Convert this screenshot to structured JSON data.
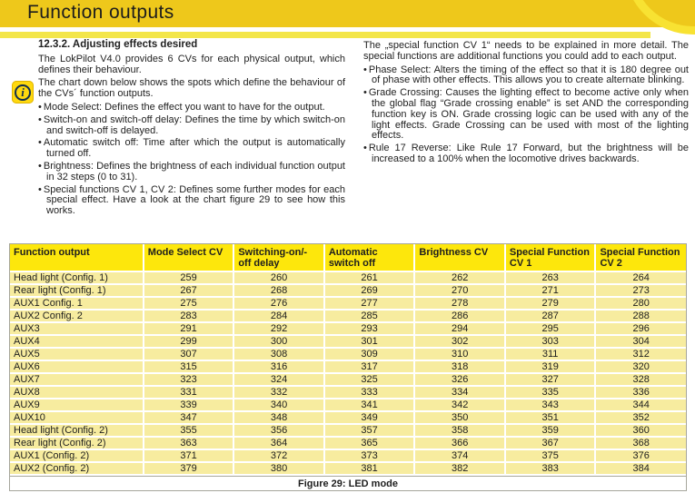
{
  "page": {
    "title": "Function outputs"
  },
  "content": {
    "section_heading": "12.3.2. Adjusting effects desired",
    "left": {
      "para1": "The LokPilot V4.0 provides 6 CVs for each physical output, which defines their behaviour.",
      "info_note": "The chart down below shows the spots which define the behaviour of the CVs´ function outputs.",
      "bullets": [
        "Mode Select: Defines the effect you want to have for the output.",
        "Switch-on and switch-off delay: Defines the time by which switch-on and switch-off is delayed.",
        "Automatic switch off: Time after which the output is automatically turned off.",
        "Brightness: Defines the brightness of each individual function output in 32 steps (0 to 31).",
        "Special functions CV 1, CV 2: Defines some further modes for each special effect. Have a look at the chart figure 29 to see how this works."
      ]
    },
    "right": {
      "para1": "The „special function CV 1“ needs to be explained in more detail. The special functions are additional functions you could add to each output.",
      "bullets": [
        "Phase Select: Alters the timing of the effect so that it is 180 degree out of phase with other effects. This allows you to create alternate blinking.",
        "Grade Crossing: Causes the lighting effect to become active only when the global flag “Grade crossing enable” is set AND the corresponding function key is ON. Grade crossing logic can be used with any of the light effects. Grade Crossing can be used with most of the lighting effects.",
        "Rule 17 Reverse: Like Rule 17 Forward, but the brightness will be increased to a 100% when the locomotive drives backwards."
      ]
    }
  },
  "icons": {
    "info_symbol": "i"
  },
  "table": {
    "caption": "Figure 29: LED mode",
    "headers": [
      "Function output",
      "Mode Select CV",
      "Switching-on/-off delay",
      "Automatic switch off",
      "Brightness CV",
      "Special Function CV 1",
      "Special Function CV 2"
    ],
    "rows": [
      {
        "output": "Head light (Config. 1)",
        "values": [
          259,
          260,
          261,
          262,
          263,
          264
        ]
      },
      {
        "output": "Rear light (Config. 1)",
        "values": [
          267,
          268,
          269,
          270,
          271,
          273
        ]
      },
      {
        "output": "AUX1 Config. 1",
        "values": [
          275,
          276,
          277,
          278,
          279,
          280
        ]
      },
      {
        "output": "AUX2 Config. 2",
        "values": [
          283,
          284,
          285,
          286,
          287,
          288
        ]
      },
      {
        "output": "AUX3",
        "values": [
          291,
          292,
          293,
          294,
          295,
          296
        ]
      },
      {
        "output": "AUX4",
        "values": [
          299,
          300,
          301,
          302,
          303,
          304
        ]
      },
      {
        "output": "AUX5",
        "values": [
          307,
          308,
          309,
          310,
          311,
          312
        ]
      },
      {
        "output": "AUX6",
        "values": [
          315,
          316,
          317,
          318,
          319,
          320
        ]
      },
      {
        "output": "AUX7",
        "values": [
          323,
          324,
          325,
          326,
          327,
          328
        ]
      },
      {
        "output": "AUX8",
        "values": [
          331,
          332,
          333,
          334,
          335,
          336
        ]
      },
      {
        "output": "AUX9",
        "values": [
          339,
          340,
          341,
          342,
          343,
          344
        ]
      },
      {
        "output": "AUX10",
        "values": [
          347,
          348,
          349,
          350,
          351,
          352
        ]
      },
      {
        "output": "Head light (Config. 2)",
        "values": [
          355,
          356,
          357,
          358,
          359,
          360
        ]
      },
      {
        "output": "Rear light (Config. 2)",
        "values": [
          363,
          364,
          365,
          366,
          367,
          368
        ]
      },
      {
        "output": "AUX1 (Config. 2)",
        "values": [
          371,
          372,
          373,
          374,
          375,
          376
        ]
      },
      {
        "output": "AUX2 (Config. 2)",
        "values": [
          379,
          380,
          381,
          382,
          383,
          384
        ]
      }
    ]
  },
  "colors": {
    "header_bar": "#eec81b",
    "accent_stripe": "#f3e64a",
    "header_arc": "#f8e232",
    "table_header_bg": "#fde70c",
    "table_row_bg": "#f7ec9f",
    "info_icon_bg": "#ffd90f"
  }
}
